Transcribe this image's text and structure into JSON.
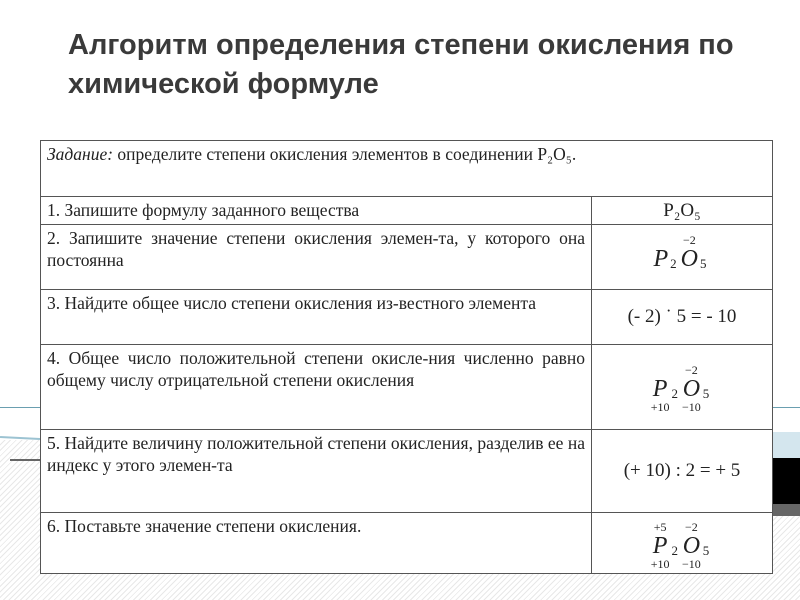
{
  "title": "Алгоритм определения степени окисления по химической формуле",
  "task": {
    "label": "Задание:",
    "text": "определите степени окисления элементов в соединении P₂O₅."
  },
  "rows": [
    {
      "step": "1. Запишите формулу заданного вещества",
      "result": "P₂O₅"
    },
    {
      "step": "2. Запишите значение степени окисления элемен-та, у которого она постоянна",
      "formula": {
        "p": "P",
        "p_top": "",
        "p_bottom": "",
        "p_index": "2",
        "o": "O",
        "o_top": "−2",
        "o_bottom": "",
        "o_index": "5"
      }
    },
    {
      "step": "3. Найдите общее число степени окисления из-вестного элемента",
      "result": "(- 2) ˙ 5 = - 10"
    },
    {
      "step": "4. Общее число положительной степени окисле-ния численно равно общему числу отрицательной степени окисления",
      "formula": {
        "p": "P",
        "p_top": "",
        "p_bottom": "+10",
        "p_index": "2",
        "o": "O",
        "o_top": "−2",
        "o_bottom": "−10",
        "o_index": "5"
      }
    },
    {
      "step": "5. Найдите величину положительной степени окисления, разделив ее на индекс у этого элемен-та",
      "result": "(+ 10) : 2 = + 5"
    },
    {
      "step": "6. Поставьте значение степени окисления.",
      "formula": {
        "p": "P",
        "p_top": "+5",
        "p_bottom": "+10",
        "p_index": "2",
        "o": "O",
        "o_top": "−2",
        "o_bottom": "−10",
        "o_index": "5"
      }
    }
  ]
}
